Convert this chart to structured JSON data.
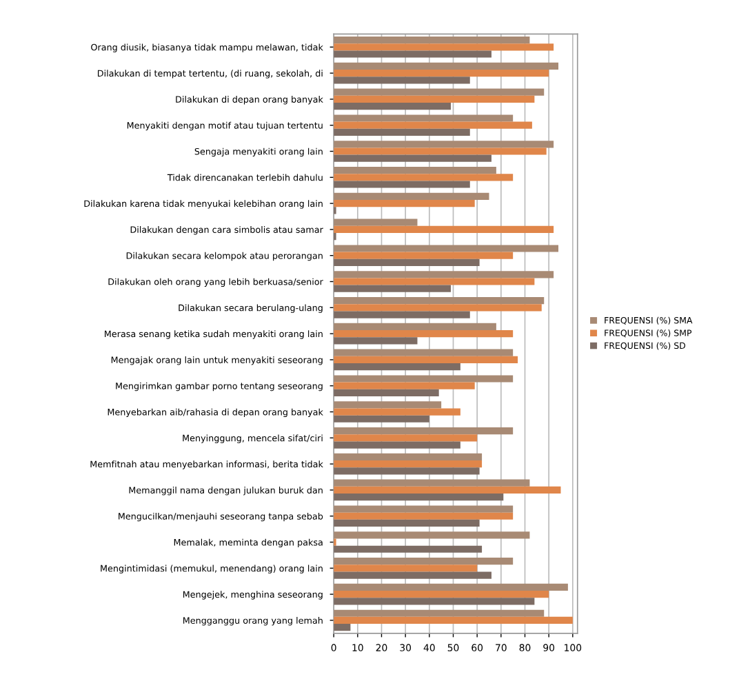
{
  "chart_data": {
    "type": "bar",
    "orientation": "horizontal",
    "categories": [
      "Orang diusik, biasanya tidak mampu melawan, tidak",
      "Dilakukan di tempat tertentu, (di ruang, sekolah, di",
      "Dilakukan di depan orang banyak",
      "Menyakiti dengan motif atau tujuan tertentu",
      "Sengaja menyakiti orang lain",
      "Tidak direncanakan terlebih dahulu",
      "Dilakukan karena tidak menyukai kelebihan orang lain",
      "Dilakukan dengan cara simbolis atau samar",
      "Dilakukan secara kelompok atau perorangan",
      "Dilakukan oleh orang yang lebih berkuasa/senior",
      "Dilakukan secara berulang-ulang",
      "Merasa senang ketika sudah menyakiti orang lain",
      "Mengajak orang lain untuk menyakiti seseorang",
      "Mengirimkan gambar porno tentang seseorang",
      "Menyebarkan aib/rahasia di depan orang banyak",
      "Menyinggung, mencela sifat/ciri",
      "Memfitnah atau menyebarkan informasi, berita tidak",
      "Memanggil nama dengan julukan buruk dan",
      "Mengucilkan/menjauhi seseorang tanpa sebab",
      "Memalak, meminta dengan paksa",
      "Mengintimidasi (memukul, menendang) orang lain",
      "Mengejek, menghina seseorang",
      "Mengganggu orang yang lemah"
    ],
    "series": [
      {
        "name": "FREQUENSI (%) SMA",
        "color": "#a88a74",
        "values": [
          82,
          94,
          88,
          75,
          92,
          68,
          65,
          35,
          94,
          92,
          88,
          68,
          75,
          75,
          45,
          75,
          62,
          82,
          75,
          82,
          75,
          98,
          88
        ]
      },
      {
        "name": "FREQUENSI (%) SMP",
        "color": "#e0864a",
        "values": [
          92,
          90,
          84,
          83,
          89,
          75,
          59,
          92,
          75,
          84,
          87,
          75,
          77,
          59,
          53,
          60,
          62,
          95,
          75,
          1,
          60,
          90,
          100
        ]
      },
      {
        "name": "FREQUENSI (%) SD",
        "color": "#7d6c64",
        "values": [
          66,
          57,
          49,
          57,
          66,
          57,
          1,
          1,
          61,
          49,
          57,
          35,
          53,
          44,
          40,
          53,
          61,
          71,
          61,
          62,
          66,
          84,
          7
        ]
      }
    ],
    "xlim": [
      0,
      102
    ],
    "xticks": [
      0,
      10,
      20,
      30,
      40,
      50,
      60,
      70,
      80,
      90,
      100
    ],
    "grid": "x",
    "legend": "right"
  }
}
